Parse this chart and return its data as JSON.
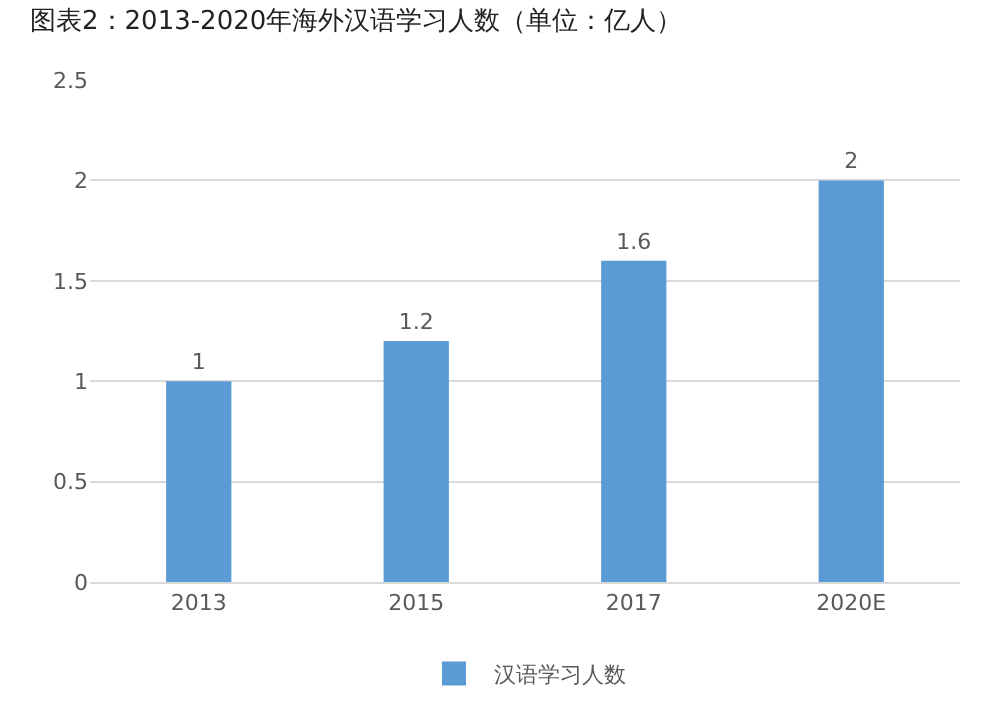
{
  "chart_data": {
    "type": "bar",
    "title": "图表2：2013-2020年海外汉语学习人数（单位：亿人）",
    "categories": [
      "2013",
      "2015",
      "2017",
      "2020E"
    ],
    "series": [
      {
        "name": "汉语学习人数",
        "color": "#5b9bd5",
        "values": [
          1,
          1.2,
          1.6,
          2
        ]
      }
    ],
    "ylim": [
      0,
      2.5
    ],
    "yticks": [
      0,
      0.5,
      1,
      1.5,
      2,
      2.5
    ],
    "grid": "y",
    "legend": "bottom",
    "data_labels": true
  }
}
